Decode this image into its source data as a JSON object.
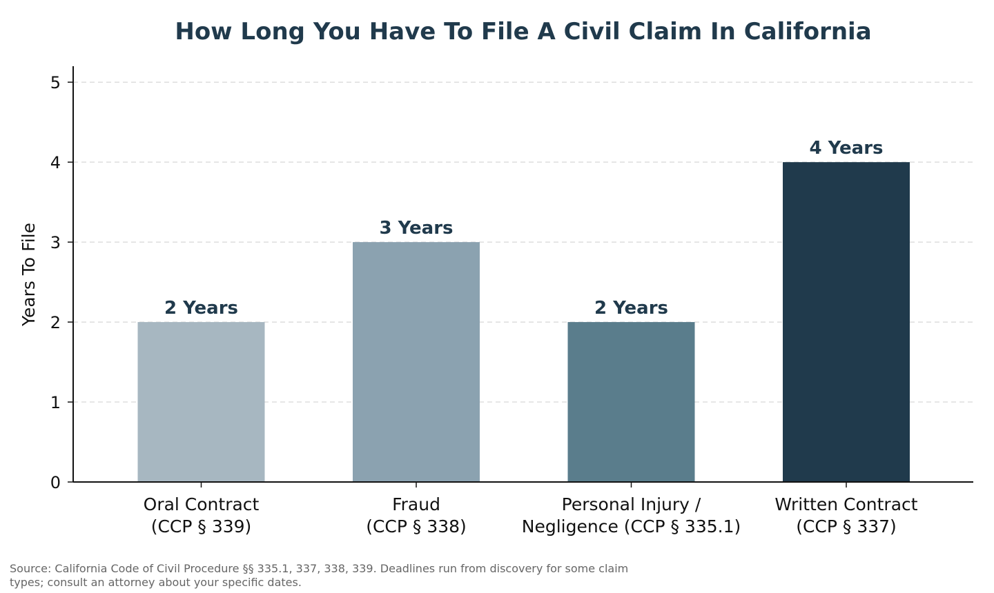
{
  "chart_data": {
    "type": "bar",
    "title": "How Long You Have To File A Civil Claim In California",
    "ylabel": "Years To File",
    "xlabel": "",
    "ylim": [
      0,
      5.2
    ],
    "yticks": [
      0,
      1,
      2,
      3,
      4,
      5
    ],
    "grid": "horizontal-dashed",
    "categories": [
      [
        "Oral Contract",
        "(CCP § 339)"
      ],
      [
        "Fraud",
        "(CCP § 338)"
      ],
      [
        "Personal Injury /",
        "Negligence (CCP § 335.1)"
      ],
      [
        "Written Contract",
        "(CCP § 337)"
      ]
    ],
    "values": [
      2,
      3,
      2,
      4
    ],
    "data_labels": [
      "2 Years",
      "3 Years",
      "2 Years",
      "4 Years"
    ],
    "colors": [
      "#a7b7c1",
      "#8ba2b0",
      "#5a7d8c",
      "#203a4c"
    ],
    "title_color": "#203a4c",
    "label_color": "#203a4c",
    "source": "Source: California Code of Civil Procedure §§ 335.1, 337, 338, 339. Deadlines run from discovery for some claim types; consult an attorney about your specific dates."
  }
}
